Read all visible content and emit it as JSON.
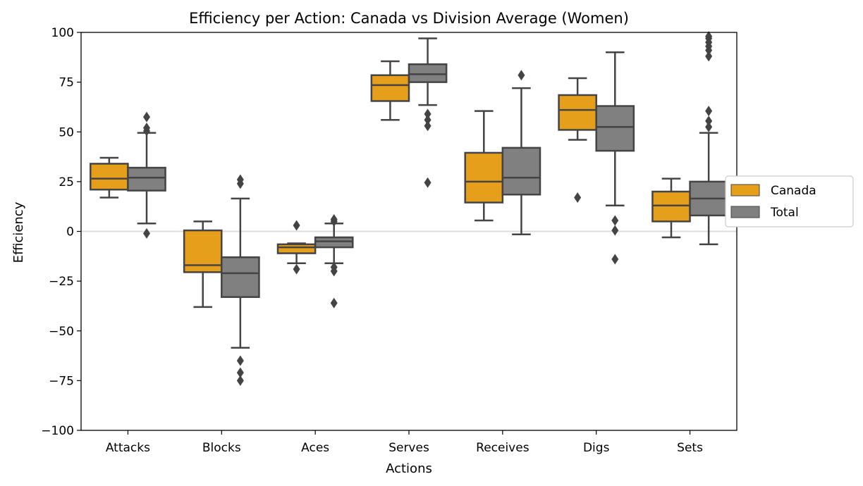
{
  "chart_data": {
    "type": "boxplot",
    "title": "Efficiency per Action: Canada vs Division Average (Women)",
    "xlabel": "Actions",
    "ylabel": "Efficiency",
    "ylim": [
      -100,
      100
    ],
    "yticks": [
      -100,
      -75,
      -50,
      -25,
      0,
      25,
      50,
      75,
      100
    ],
    "ytick_labels": [
      "−100",
      "−75",
      "−50",
      "−25",
      "0",
      "25",
      "50",
      "75",
      "100"
    ],
    "reference_line": 0,
    "legend_position": "right-outside",
    "categories": [
      "Attacks",
      "Blocks",
      "Aces",
      "Serves",
      "Receives",
      "Digs",
      "Sets"
    ],
    "series": [
      {
        "name": "Canada",
        "color": "#e69f1a",
        "boxes": [
          {
            "min": 17,
            "q1": 21,
            "median": 26.5,
            "q3": 34,
            "max": 37,
            "outliers": []
          },
          {
            "min": -38,
            "q1": -20.5,
            "median": -17,
            "q3": 0.5,
            "max": 5,
            "outliers": []
          },
          {
            "min": -16,
            "q1": -11,
            "median": -8,
            "q3": -6.5,
            "max": -6,
            "outliers": [
              3,
              -19
            ]
          },
          {
            "min": 56,
            "q1": 65.5,
            "median": 73.5,
            "q3": 78.5,
            "max": 85.5,
            "outliers": []
          },
          {
            "min": 5.5,
            "q1": 14.5,
            "median": 25,
            "q3": 39.5,
            "max": 60.5,
            "outliers": []
          },
          {
            "min": 46,
            "q1": 51,
            "median": 61,
            "q3": 68.5,
            "max": 77,
            "outliers": [
              17
            ]
          },
          {
            "min": -3,
            "q1": 5,
            "median": 13,
            "q3": 20,
            "max": 26.5,
            "outliers": []
          }
        ]
      },
      {
        "name": "Total",
        "color": "#808080",
        "boxes": [
          {
            "min": 4,
            "q1": 20.5,
            "median": 27,
            "q3": 32,
            "max": 49.5,
            "outliers": [
              57.5,
              52,
              50.5,
              -1
            ]
          },
          {
            "min": -58.5,
            "q1": -33,
            "median": -21,
            "q3": -13,
            "max": 16.5,
            "outliers": [
              26,
              24,
              -65,
              -71,
              -75
            ]
          },
          {
            "min": -16,
            "q1": -8,
            "median": -5,
            "q3": -3,
            "max": 4,
            "outliers": [
              6,
              5,
              -18,
              -20,
              -36
            ]
          },
          {
            "min": 63.5,
            "q1": 75,
            "median": 79,
            "q3": 84,
            "max": 97,
            "outliers": [
              59,
              56,
              53,
              24.5
            ]
          },
          {
            "min": -1.5,
            "q1": 18.5,
            "median": 27,
            "q3": 42,
            "max": 72,
            "outliers": [
              78.5
            ]
          },
          {
            "min": 13,
            "q1": 40.5,
            "median": 52.5,
            "q3": 63,
            "max": 90,
            "outliers": [
              5.5,
              0.5,
              -14
            ]
          },
          {
            "min": -6.5,
            "q1": 8,
            "median": 16.5,
            "q3": 25,
            "max": 49.5,
            "outliers": [
              98,
              97,
              95,
              93,
              91,
              88,
              60.5,
              55.5,
              52.5
            ]
          }
        ]
      }
    ]
  }
}
